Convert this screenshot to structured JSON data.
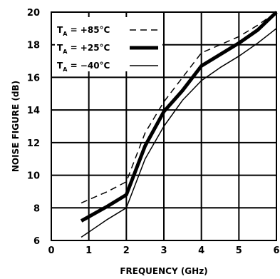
{
  "chart_data": {
    "type": "line",
    "xlabel": "FREQUENCY (GHz)",
    "ylabel": "NOISE FIGURE (dB)",
    "xlim": [
      0,
      6
    ],
    "ylim": [
      6,
      20
    ],
    "xticks": [
      "0",
      "1",
      "2",
      "3",
      "4",
      "5",
      "6"
    ],
    "yticks": [
      "6",
      "8",
      "10",
      "12",
      "14",
      "16",
      "18",
      "20"
    ],
    "grid": true,
    "legend_position": "top-left",
    "series": [
      {
        "name": "T_A = +85°C",
        "legend_sub": "A",
        "legend_prefix": "T",
        "legend_value": " = +85°C",
        "style": "dashed",
        "points": [
          [
            0.8,
            8.3
          ],
          [
            1.5,
            9.0
          ],
          [
            2.0,
            9.6
          ],
          [
            2.5,
            12.6
          ],
          [
            3.0,
            14.5
          ],
          [
            3.5,
            16.0
          ],
          [
            4.0,
            17.5
          ],
          [
            4.5,
            18.0
          ],
          [
            5.0,
            18.5
          ],
          [
            5.5,
            19.2
          ],
          [
            6.0,
            20.0
          ]
        ]
      },
      {
        "name": "T_A = +25°C",
        "legend_sub": "A",
        "legend_prefix": "T",
        "legend_value": " = +25°C",
        "style": "thick",
        "points": [
          [
            0.8,
            7.2
          ],
          [
            1.5,
            8.1
          ],
          [
            2.0,
            8.8
          ],
          [
            2.5,
            11.8
          ],
          [
            3.0,
            13.9
          ],
          [
            3.5,
            15.2
          ],
          [
            4.0,
            16.7
          ],
          [
            4.5,
            17.4
          ],
          [
            5.0,
            18.1
          ],
          [
            5.5,
            18.9
          ],
          [
            6.0,
            20.0
          ]
        ]
      },
      {
        "name": "T_A = −40°C",
        "legend_sub": "A",
        "legend_prefix": "T",
        "legend_value": " = −40°C",
        "style": "thin",
        "points": [
          [
            0.8,
            6.2
          ],
          [
            1.5,
            7.3
          ],
          [
            2.0,
            8.0
          ],
          [
            2.5,
            11.0
          ],
          [
            3.0,
            13.0
          ],
          [
            3.5,
            14.6
          ],
          [
            4.0,
            15.8
          ],
          [
            4.5,
            16.6
          ],
          [
            5.0,
            17.3
          ],
          [
            5.5,
            18.1
          ],
          [
            6.0,
            19.0
          ]
        ]
      }
    ]
  }
}
